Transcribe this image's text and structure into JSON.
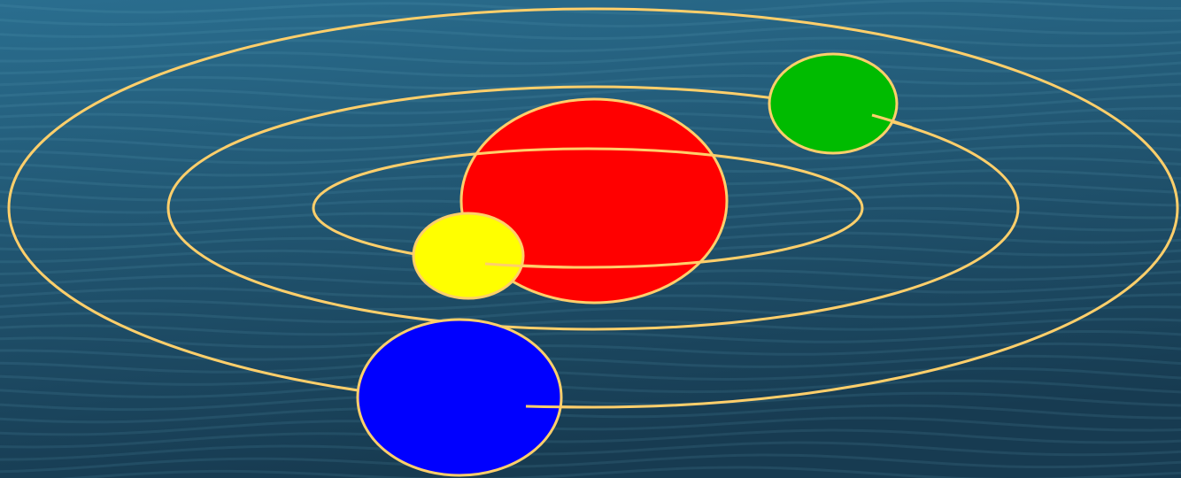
{
  "scene": {
    "background": {
      "top_color": "#2a6e8f",
      "bottom_color": "#173b51",
      "wave_color": "#6fb0cc"
    },
    "orbit_color": "#ffcf6b",
    "orbits": [
      {
        "id": "inner-orbit"
      },
      {
        "id": "middle-orbit"
      },
      {
        "id": "outer-orbit"
      }
    ],
    "sun": {
      "color": "#ff0000"
    },
    "planets": [
      {
        "id": "yellow-planet",
        "color": "#ffff00"
      },
      {
        "id": "green-planet",
        "color": "#00bb00"
      },
      {
        "id": "blue-planet",
        "color": "#0000ff"
      }
    ]
  }
}
